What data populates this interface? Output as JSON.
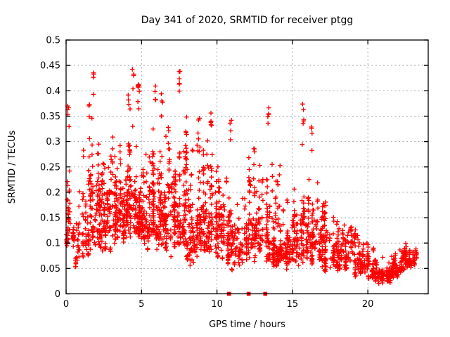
{
  "window": {
    "background": "#ffffff"
  },
  "chart_data": {
    "type": "scatter",
    "title": "Day 341 of 2020, SRMTID for receiver ptgg",
    "xlabel": "GPS time / hours",
    "ylabel": "SRMTID / TECUs",
    "xlim": [
      0,
      24
    ],
    "ylim": [
      0,
      0.5
    ],
    "xticks": [
      0,
      5,
      10,
      15,
      20
    ],
    "xtick_labels": [
      "0",
      "5",
      "10",
      "15",
      "20"
    ],
    "yticks": [
      0,
      0.05,
      0.1,
      0.15,
      0.2,
      0.25,
      0.3,
      0.35,
      0.4,
      0.45,
      0.5
    ],
    "ytick_labels": [
      "0",
      "0.05",
      "0.1",
      "0.15",
      "0.2",
      "0.25",
      "0.3",
      "0.35",
      "0.4",
      "0.45",
      "0.5"
    ],
    "grid": true,
    "legend": false,
    "marker": "plus",
    "marker_color": "#ff0000",
    "grid_color": "#a6a6a6",
    "axis_color": "#000000",
    "text_color": "#000000",
    "zero_markers": {
      "marker": "filled-square",
      "color": "#ff0000",
      "y": 0,
      "x_hours": [
        10.8,
        12.1,
        13.2
      ]
    },
    "scatter": {
      "seed": 20341,
      "bin_width": 0.5,
      "bins_format": [
        "hour_start",
        "y_min",
        "y_core_low",
        "y_core_high",
        "y_max",
        "n_points"
      ],
      "bins": [
        [
          0.0,
          0.09,
          0.1,
          0.2,
          0.37,
          55
        ],
        [
          0.5,
          0.05,
          0.07,
          0.15,
          0.22,
          30
        ],
        [
          1.0,
          0.06,
          0.1,
          0.22,
          0.31,
          45
        ],
        [
          1.5,
          0.08,
          0.12,
          0.28,
          0.44,
          65
        ],
        [
          2.0,
          0.07,
          0.12,
          0.28,
          0.36,
          70
        ],
        [
          2.5,
          0.08,
          0.12,
          0.26,
          0.33,
          70
        ],
        [
          3.0,
          0.09,
          0.12,
          0.26,
          0.33,
          65
        ],
        [
          3.5,
          0.08,
          0.12,
          0.26,
          0.34,
          65
        ],
        [
          4.0,
          0.1,
          0.13,
          0.28,
          0.42,
          70
        ],
        [
          4.5,
          0.1,
          0.14,
          0.3,
          0.4,
          75
        ],
        [
          5.0,
          0.08,
          0.12,
          0.27,
          0.35,
          70
        ],
        [
          5.5,
          0.08,
          0.12,
          0.28,
          0.4,
          70
        ],
        [
          6.0,
          0.08,
          0.12,
          0.28,
          0.38,
          70
        ],
        [
          6.5,
          0.07,
          0.11,
          0.26,
          0.35,
          70
        ],
        [
          7.0,
          0.08,
          0.12,
          0.28,
          0.4,
          70
        ],
        [
          7.5,
          0.07,
          0.11,
          0.28,
          0.42,
          70
        ],
        [
          8.0,
          0.05,
          0.09,
          0.24,
          0.32,
          65
        ],
        [
          8.5,
          0.06,
          0.1,
          0.24,
          0.34,
          65
        ],
        [
          9.0,
          0.07,
          0.1,
          0.25,
          0.34,
          65
        ],
        [
          9.5,
          0.07,
          0.1,
          0.25,
          0.34,
          60
        ],
        [
          10.0,
          0.06,
          0.09,
          0.23,
          0.32,
          60
        ],
        [
          10.5,
          0.05,
          0.08,
          0.21,
          0.33,
          55
        ],
        [
          11.0,
          0.04,
          0.07,
          0.19,
          0.3,
          45
        ],
        [
          11.5,
          0.05,
          0.07,
          0.17,
          0.24,
          40
        ],
        [
          12.0,
          0.06,
          0.09,
          0.22,
          0.3,
          55
        ],
        [
          12.5,
          0.06,
          0.09,
          0.21,
          0.27,
          50
        ],
        [
          13.0,
          0.05,
          0.09,
          0.23,
          0.37,
          55
        ],
        [
          13.5,
          0.05,
          0.08,
          0.21,
          0.3,
          50
        ],
        [
          14.0,
          0.05,
          0.08,
          0.19,
          0.29,
          55
        ],
        [
          14.5,
          0.04,
          0.07,
          0.17,
          0.25,
          50
        ],
        [
          15.0,
          0.05,
          0.08,
          0.17,
          0.27,
          50
        ],
        [
          15.5,
          0.05,
          0.08,
          0.19,
          0.37,
          55
        ],
        [
          16.0,
          0.05,
          0.08,
          0.21,
          0.34,
          60
        ],
        [
          16.5,
          0.05,
          0.08,
          0.17,
          0.24,
          55
        ],
        [
          17.0,
          0.04,
          0.06,
          0.14,
          0.21,
          50
        ],
        [
          17.5,
          0.04,
          0.06,
          0.12,
          0.17,
          45
        ],
        [
          18.0,
          0.04,
          0.06,
          0.13,
          0.19,
          50
        ],
        [
          18.5,
          0.04,
          0.06,
          0.13,
          0.2,
          45
        ],
        [
          19.0,
          0.03,
          0.05,
          0.11,
          0.16,
          45
        ],
        [
          19.5,
          0.03,
          0.05,
          0.09,
          0.13,
          45
        ],
        [
          20.0,
          0.02,
          0.04,
          0.08,
          0.11,
          50
        ],
        [
          20.5,
          0.02,
          0.03,
          0.06,
          0.09,
          60
        ],
        [
          21.0,
          0.02,
          0.03,
          0.06,
          0.09,
          60
        ],
        [
          21.5,
          0.03,
          0.04,
          0.07,
          0.1,
          50
        ],
        [
          22.0,
          0.04,
          0.05,
          0.09,
          0.12,
          50
        ],
        [
          22.5,
          0.05,
          0.06,
          0.1,
          0.13,
          45
        ],
        [
          23.0,
          0.05,
          0.06,
          0.1,
          0.13,
          25
        ]
      ],
      "spikes_format": [
        "hour",
        "y_top"
      ],
      "spikes": [
        [
          0.15,
          0.37
        ],
        [
          1.8,
          0.45
        ],
        [
          4.45,
          0.45
        ],
        [
          4.8,
          0.42
        ],
        [
          5.9,
          0.42
        ],
        [
          6.35,
          0.4
        ],
        [
          7.55,
          0.445
        ],
        [
          8.8,
          0.35
        ],
        [
          9.6,
          0.36
        ],
        [
          10.9,
          0.345
        ],
        [
          13.4,
          0.385
        ],
        [
          15.7,
          0.385
        ],
        [
          16.3,
          0.35
        ]
      ]
    }
  }
}
